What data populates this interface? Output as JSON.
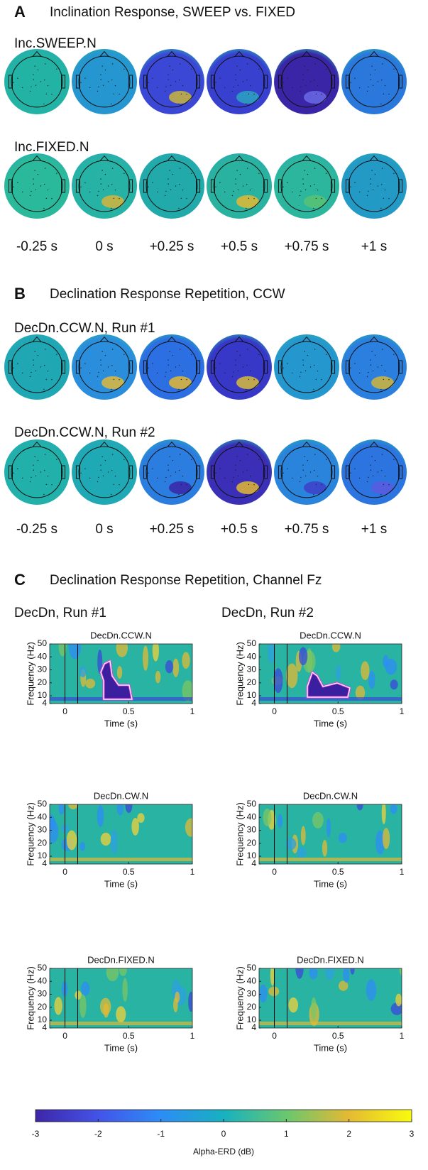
{
  "panel_a": {
    "letter": "A",
    "title": "Inclination Response, SWEEP vs. FIXED",
    "rows": [
      {
        "label": "Inc.SWEEP.N"
      },
      {
        "label": "Inc.FIXED.N"
      }
    ],
    "time_labels": [
      "-0.25 s",
      "0 s",
      "+0.25 s",
      "+0.5 s",
      "+0.75 s",
      "+1 s"
    ]
  },
  "panel_b": {
    "letter": "B",
    "title": "Declination Response Repetition, CCW",
    "rows": [
      {
        "label": "DecDn.CCW.N, Run #1"
      },
      {
        "label": "DecDn.CCW.N, Run #2"
      }
    ],
    "time_labels": [
      "-0.25 s",
      "0 s",
      "+0.25 s",
      "+0.5 s",
      "+0.75 s",
      "+1 s"
    ]
  },
  "panel_c": {
    "letter": "C",
    "title": "Declination Response Repetition, Channel Fz",
    "columns": [
      {
        "label": "DecDn, Run #1",
        "plots": [
          {
            "title": "DecDn.CCW.N"
          },
          {
            "title": "DecDn.CW.N"
          },
          {
            "title": "DecDn.FIXED.N"
          }
        ]
      },
      {
        "label": "DecDn, Run #2",
        "plots": [
          {
            "title": "DecDn.CCW.N"
          },
          {
            "title": "DecDn.CW.N"
          },
          {
            "title": "DecDn.FIXED.N"
          }
        ]
      }
    ],
    "xlabel": "Time (s)",
    "ylabel": "Frequency (Hz)",
    "xlim": [
      -0.12,
      1
    ],
    "xticks": [
      0,
      0.5,
      1
    ],
    "ylim": [
      4,
      50
    ],
    "yticks": [
      4,
      10,
      20,
      30,
      40,
      50
    ],
    "event_lines": [
      0,
      0.1
    ]
  },
  "colorbar": {
    "label": "Alpha-ERD (dB)",
    "lim": [
      -3,
      3
    ],
    "ticks": [
      -3,
      -2,
      -1,
      0,
      1,
      2,
      3
    ]
  }
}
